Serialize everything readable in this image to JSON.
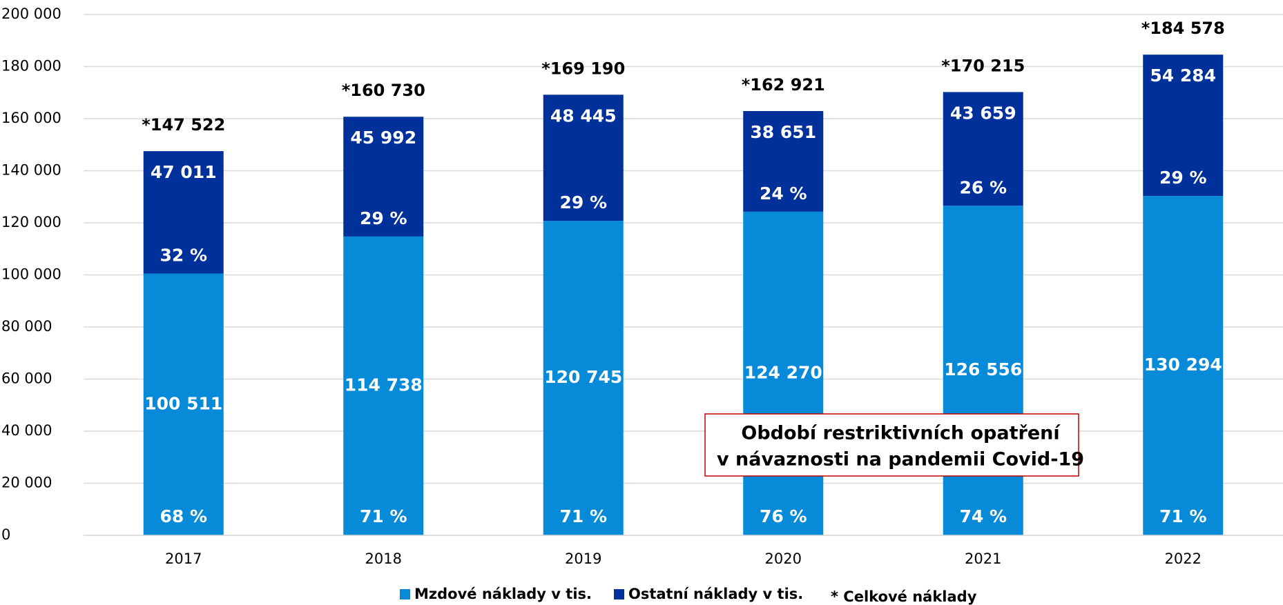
{
  "chart_data": {
    "type": "stacked_bar",
    "categories": [
      "2017",
      "2018",
      "2019",
      "2020",
      "2021",
      "2022"
    ],
    "series": [
      {
        "name": "Mzdové náklady v tis.",
        "color": "#078bd9",
        "values": [
          100511,
          114738,
          120745,
          124270,
          126556,
          130294
        ],
        "value_labels": [
          "100 511",
          "114 738",
          "120 745",
          "124 270",
          "126 556",
          "130 294"
        ],
        "shares": [
          68,
          71,
          71,
          76,
          74,
          71
        ],
        "share_labels": [
          "68 %",
          "71 %",
          "71 %",
          "76 %",
          "74 %",
          "71 %"
        ]
      },
      {
        "name": "Ostatní náklady v tis.",
        "color": "#00309a",
        "values": [
          47011,
          45992,
          48445,
          38651,
          43659,
          54284
        ],
        "value_labels": [
          "47 011",
          "45 992",
          "48 445",
          "38 651",
          "43 659",
          "54 284"
        ],
        "shares": [
          32,
          29,
          29,
          24,
          26,
          29
        ],
        "share_labels": [
          "32 %",
          "29 %",
          "29 %",
          "24 %",
          "26 %",
          "29 %"
        ]
      }
    ],
    "totals": [
      147522,
      160730,
      169190,
      162921,
      170215,
      184578
    ],
    "total_labels": [
      "*147 522",
      "*160 730",
      "*169 190",
      "*162 921",
      "*170 215",
      "*184 578"
    ],
    "total_note": "* Celkové náklady",
    "annotation": [
      "Období restriktivních opatření",
      "v návaznosti na pandemii Covid-19"
    ],
    "ylim": [
      0,
      200000
    ],
    "yticks": [
      0,
      {
        "value": 20000,
        "label": "20 000"
      },
      {
        "value": 40000,
        "label": "40 000"
      },
      {
        "value": 60000,
        "label": "60 000"
      },
      {
        "value": 80000,
        "label": "80 000"
      },
      {
        "value": 100000,
        "label": "100 000"
      },
      {
        "value": 120000,
        "label": "120 000"
      },
      {
        "value": 140000,
        "label": "140 000"
      },
      {
        "value": 160000,
        "label": "160 000"
      },
      {
        "value": 180000,
        "label": "180 000"
      },
      {
        "value": 200000,
        "label": "200 000"
      }
    ],
    "grid": true,
    "legend": "bottom"
  }
}
